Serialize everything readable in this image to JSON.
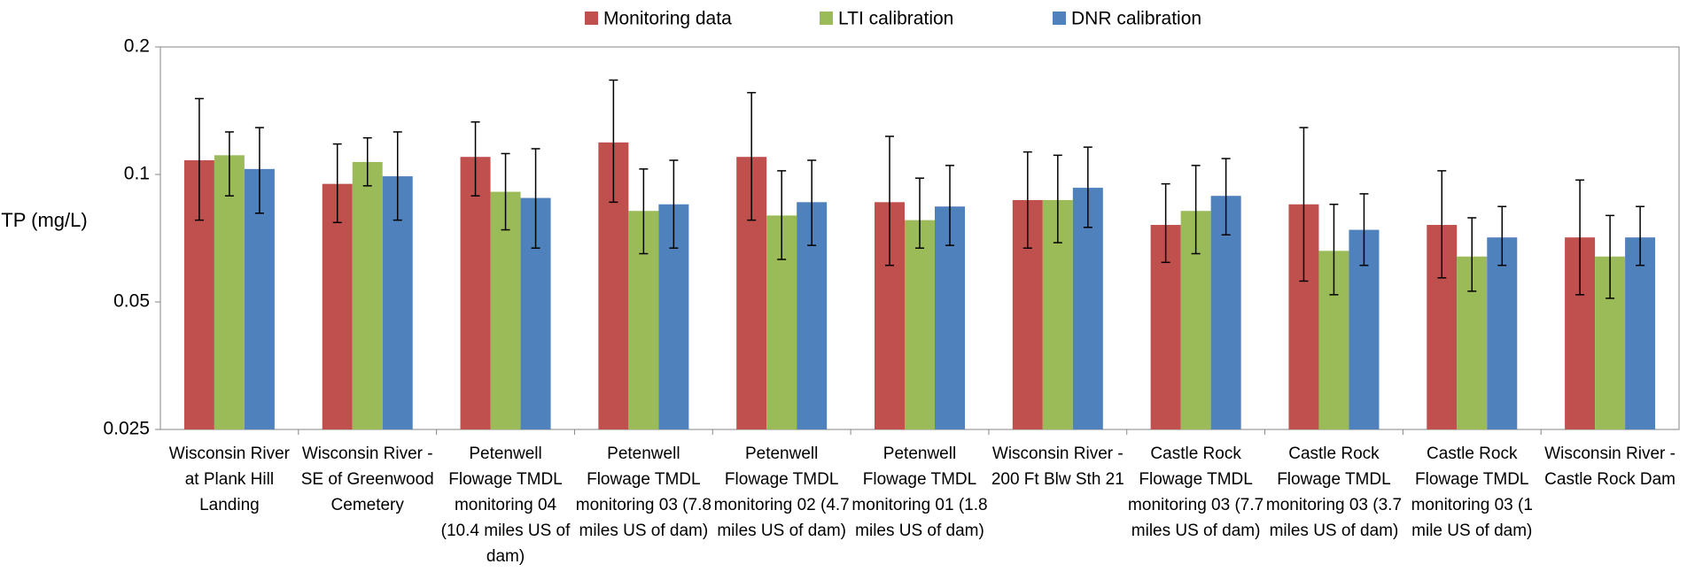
{
  "chart_data": {
    "type": "bar",
    "y_label": "TP (mg/L)",
    "log_scale": true,
    "categories": [
      "Wisconsin River at Plank Hill Landing",
      "Wisconsin River - SE of Greenwood Cemetery",
      "Petenwell Flowage TMDL monitoring 04 (10.4 miles US of dam)",
      "Petenwell Flowage TMDL monitoring 03 (7.8 miles US of dam)",
      "Petenwell Flowage TMDL monitoring 02 (4.7 miles US of dam)",
      "Petenwell Flowage TMDL monitoring 01 (1.8 miles US of dam)",
      "Wisconsin River - 200 Ft Blw Sth 21",
      "Castle Rock Flowage TMDL monitoring 03 (7.7 miles US of dam)",
      "Castle Rock Flowage TMDL monitoring 03 (3.7 miles US of dam)",
      "Castle Rock Flowage TMDL monitoring 03 (1 mile US of dam)",
      "Wisconsin River - Castle Rock Dam"
    ],
    "series": [
      {
        "name": "Monitoring data",
        "color": "#c0504d",
        "values": [
          0.108,
          0.095,
          0.11,
          0.119,
          0.11,
          0.086,
          0.087,
          0.076,
          0.085,
          0.076,
          0.071
        ],
        "lower": [
          0.078,
          0.077,
          0.089,
          0.086,
          0.078,
          0.061,
          0.067,
          0.062,
          0.056,
          0.057,
          0.052
        ],
        "upper": [
          0.151,
          0.118,
          0.133,
          0.167,
          0.156,
          0.123,
          0.113,
          0.095,
          0.129,
          0.102,
          0.097
        ]
      },
      {
        "name": "LTI calibration",
        "color": "#9bbb59",
        "values": [
          0.111,
          0.107,
          0.091,
          0.082,
          0.08,
          0.078,
          0.087,
          0.082,
          0.066,
          0.064,
          0.064
        ],
        "lower": [
          0.089,
          0.094,
          0.074,
          0.065,
          0.063,
          0.067,
          0.069,
          0.065,
          0.052,
          0.053,
          0.051
        ],
        "upper": [
          0.126,
          0.122,
          0.112,
          0.103,
          0.102,
          0.098,
          0.111,
          0.105,
          0.085,
          0.079,
          0.08
        ]
      },
      {
        "name": "DNR calibration",
        "color": "#4f81bd",
        "values": [
          0.103,
          0.099,
          0.088,
          0.085,
          0.086,
          0.084,
          0.093,
          0.089,
          0.074,
          0.071,
          0.071
        ],
        "lower": [
          0.081,
          0.078,
          0.067,
          0.067,
          0.068,
          0.068,
          0.075,
          0.072,
          0.061,
          0.061,
          0.061
        ],
        "upper": [
          0.129,
          0.126,
          0.115,
          0.108,
          0.108,
          0.105,
          0.116,
          0.109,
          0.09,
          0.084,
          0.084
        ]
      }
    ],
    "ylim": [
      0.025,
      0.2
    ],
    "yticks": [
      0.025,
      0.05,
      0.1,
      0.2
    ],
    "legend": "top"
  }
}
